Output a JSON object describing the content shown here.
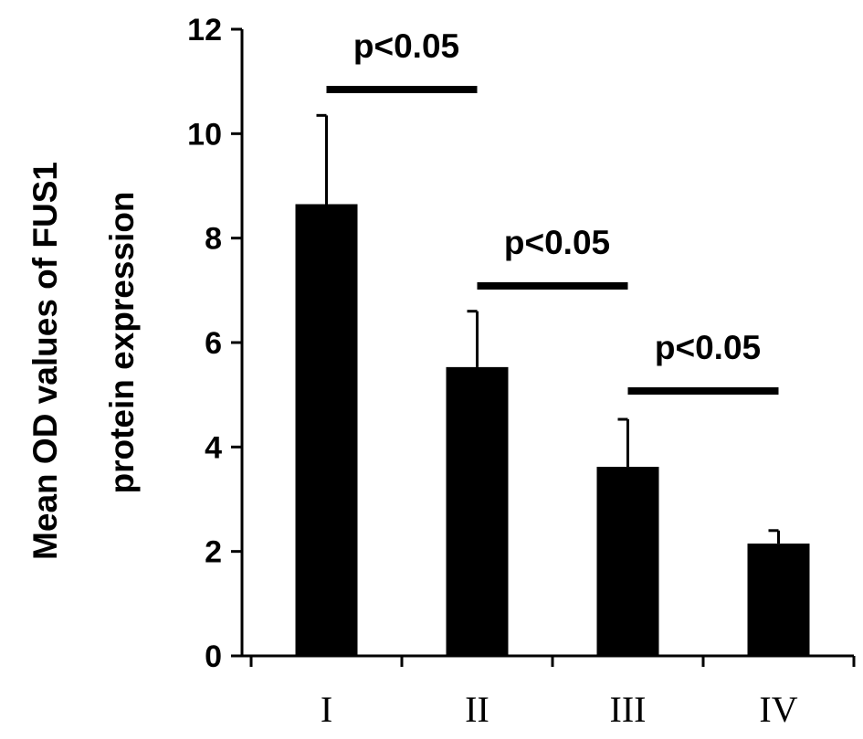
{
  "chart_data": {
    "type": "bar",
    "categories": [
      "I",
      "II",
      "III",
      "IV"
    ],
    "values": [
      8.65,
      5.53,
      3.62,
      2.15
    ],
    "error_upper": [
      10.35,
      6.6,
      4.53,
      2.4
    ],
    "title": "",
    "xlabel": "",
    "ylabel_lines": [
      "Mean OD values of FUS1",
      "protein expression"
    ],
    "ylim": [
      0,
      12
    ],
    "yticks": [
      0,
      2,
      4,
      6,
      8,
      10,
      12
    ],
    "grid": false,
    "bar_color": "#000000",
    "annotations": [
      {
        "text": "p<0.05",
        "from": "I",
        "to": "II"
      },
      {
        "text": "p<0.05",
        "from": "II",
        "to": "III"
      },
      {
        "text": "p<0.05",
        "from": "III",
        "to": "IV"
      }
    ]
  }
}
